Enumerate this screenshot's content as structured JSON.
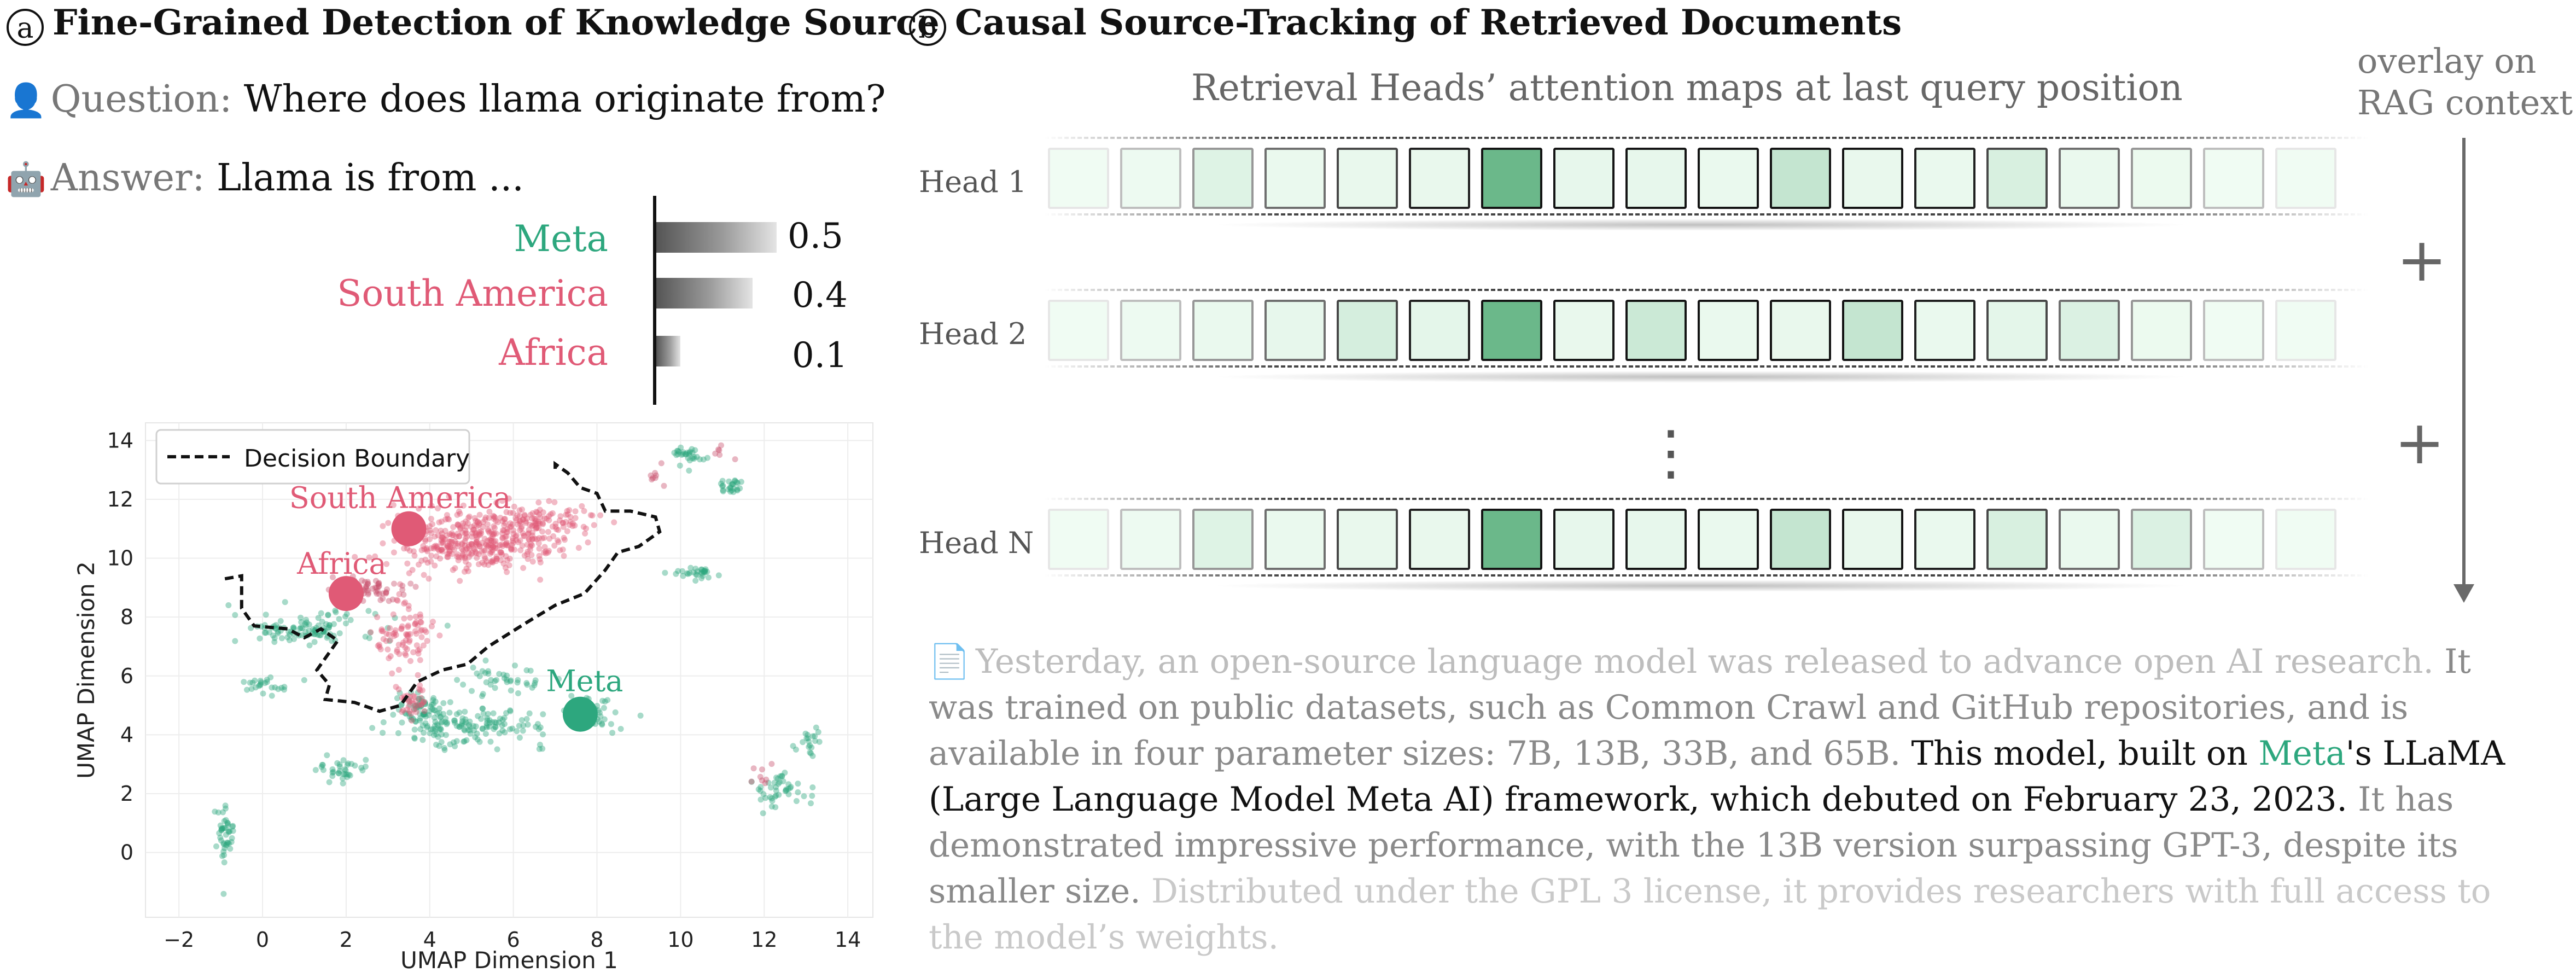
{
  "panel_a": {
    "letter": "a",
    "title": "Fine-Grained Detection of Knowledge Source",
    "question_label": "Question:",
    "question_text": "Where does llama originate from?",
    "answer_label": "Answer:",
    "answer_text": "Llama is from ...",
    "person_icon": "👤",
    "robot_icon": "🤖",
    "candidates": [
      {
        "label": "Meta",
        "prob": "0.5",
        "value": 0.5,
        "color": "#2da77e"
      },
      {
        "label": "South America",
        "prob": "0.4",
        "value": 0.4,
        "color": "#e05a76"
      },
      {
        "label": "Africa",
        "prob": "0.1",
        "value": 0.1,
        "color": "#e05a76"
      }
    ]
  },
  "panel_b": {
    "letter": "b",
    "title": "Causal Source-Tracking of Retrieved Documents",
    "heads_title": "Retrieval Heads’ attention maps at last query position",
    "overlay_line1": "overlay on",
    "overlay_line2": "RAG context",
    "vdots": "⋮",
    "plus_sign": "+",
    "heads": [
      {
        "label": "Head 1",
        "cells": [
          0.0,
          0.02,
          0.12,
          0.04,
          0.05,
          0.05,
          0.9,
          0.06,
          0.06,
          0.04,
          0.3,
          0.05,
          0.04,
          0.16,
          0.04,
          0.03,
          0.0,
          0.0
        ]
      },
      {
        "label": "Head 2",
        "cells": [
          0.0,
          0.02,
          0.04,
          0.06,
          0.18,
          0.08,
          0.9,
          0.05,
          0.25,
          0.04,
          0.05,
          0.3,
          0.04,
          0.08,
          0.14,
          0.03,
          0.0,
          0.0
        ]
      },
      {
        "label": "Head N",
        "cells": [
          0.0,
          0.02,
          0.12,
          0.04,
          0.05,
          0.05,
          0.9,
          0.06,
          0.06,
          0.04,
          0.3,
          0.05,
          0.04,
          0.16,
          0.04,
          0.14,
          0.0,
          0.0
        ]
      }
    ],
    "document_icon": "📄",
    "document_segments": [
      {
        "text": "Yesterday, an open-source language model was released to advance open AI research. ",
        "style": "s0"
      },
      {
        "text": "It was trained on public datasets, such as Common Crawl and GitHub repositories, and is available in four parameter sizes: 7B, 13B, 33B, and 65B. ",
        "style": "s1"
      },
      {
        "text": "This model, built on ",
        "style": "s2"
      },
      {
        "text": "Meta",
        "style": "meta"
      },
      {
        "text": "'s LLaMA (Large Language Model Meta AI) framework, which debuted on February 23, 2023. ",
        "style": "s2"
      },
      {
        "text": "It has demonstrated impressive performance, with the 13B version surpassing GPT-3, despite its smaller size. ",
        "style": "s1"
      },
      {
        "text": "Distributed under the GPL 3 license, it provides researchers with full access to the model’s weights.",
        "style": "s3"
      }
    ]
  },
  "chart_data": {
    "type": "scatter",
    "xlabel": "UMAP Dimension 1",
    "ylabel": "UMAP Dimension 2",
    "xlim": [
      -2.8,
      14.6
    ],
    "ylim": [
      -2.2,
      14.6
    ],
    "xticks": [
      -2,
      0,
      2,
      4,
      6,
      8,
      10,
      12,
      14
    ],
    "yticks": [
      0,
      2,
      4,
      6,
      8,
      10,
      12,
      14
    ],
    "grid": true,
    "legend": {
      "entries": [
        "Decision Boundary"
      ],
      "position": "top-left"
    },
    "annotations": [
      {
        "label": "South America",
        "x": 3.5,
        "y": 11.0,
        "color": "#e05a76"
      },
      {
        "label": "Africa",
        "x": 2.0,
        "y": 8.8,
        "color": "#e05a76"
      },
      {
        "label": "Meta",
        "x": 7.6,
        "y": 4.7,
        "color": "#2da77e"
      }
    ],
    "decision_boundary": [
      [
        -0.9,
        9.3
      ],
      [
        -0.5,
        9.4
      ],
      [
        -0.5,
        8.3
      ],
      [
        -0.2,
        7.7
      ],
      [
        0.6,
        7.6
      ],
      [
        1.0,
        7.3
      ],
      [
        1.4,
        7.6
      ],
      [
        1.8,
        7.2
      ],
      [
        1.6,
        6.8
      ],
      [
        1.3,
        6.2
      ],
      [
        1.6,
        5.7
      ],
      [
        1.5,
        5.2
      ],
      [
        2.2,
        5.1
      ],
      [
        2.8,
        4.8
      ],
      [
        3.3,
        5.0
      ],
      [
        3.7,
        5.8
      ],
      [
        4.3,
        6.2
      ],
      [
        4.9,
        6.4
      ],
      [
        5.4,
        7.0
      ],
      [
        6.3,
        7.8
      ],
      [
        7.0,
        8.4
      ],
      [
        7.7,
        8.8
      ],
      [
        8.2,
        9.6
      ],
      [
        8.5,
        10.2
      ],
      [
        9.0,
        10.4
      ],
      [
        9.5,
        10.9
      ],
      [
        9.4,
        11.4
      ],
      [
        8.8,
        11.6
      ],
      [
        8.2,
        11.6
      ],
      [
        8.0,
        12.2
      ],
      [
        7.6,
        12.4
      ],
      [
        7.3,
        12.9
      ],
      [
        7.0,
        13.2
      ],
      [
        7.0,
        13.0
      ]
    ],
    "series": [
      {
        "name": "Meta",
        "color": "#2da77e",
        "clusters": [
          {
            "cx": 1.0,
            "cy": 7.6,
            "sx": 1.6,
            "sy": 0.5,
            "n": 110
          },
          {
            "cx": 5.0,
            "cy": 4.3,
            "sx": 1.7,
            "sy": 0.6,
            "n": 150
          },
          {
            "cx": 3.8,
            "cy": 4.9,
            "sx": 0.5,
            "sy": 0.5,
            "n": 60
          },
          {
            "cx": 8.0,
            "cy": 4.7,
            "sx": 0.6,
            "sy": 0.5,
            "n": 40
          },
          {
            "cx": -0.9,
            "cy": 0.6,
            "sx": 0.25,
            "sy": 0.9,
            "n": 45
          },
          {
            "cx": 1.9,
            "cy": 2.8,
            "sx": 0.5,
            "sy": 0.4,
            "n": 35
          },
          {
            "cx": 10.2,
            "cy": 13.5,
            "sx": 0.4,
            "sy": 0.3,
            "n": 30
          },
          {
            "cx": 11.2,
            "cy": 12.4,
            "sx": 0.25,
            "sy": 0.3,
            "n": 25
          },
          {
            "cx": 10.3,
            "cy": 9.5,
            "sx": 0.5,
            "sy": 0.2,
            "n": 30
          },
          {
            "cx": 12.4,
            "cy": 2.2,
            "sx": 0.6,
            "sy": 0.6,
            "n": 45
          },
          {
            "cx": 13.1,
            "cy": 3.7,
            "sx": 0.3,
            "sy": 0.5,
            "n": 20
          },
          {
            "cx": 0.1,
            "cy": 5.7,
            "sx": 0.6,
            "sy": 0.3,
            "n": 25
          },
          {
            "cx": 5.8,
            "cy": 5.9,
            "sx": 0.9,
            "sy": 0.4,
            "n": 40
          }
        ]
      },
      {
        "name": "South America",
        "color": "#e05a76",
        "clusters": [
          {
            "cx": 5.1,
            "cy": 10.6,
            "sx": 1.8,
            "sy": 0.9,
            "n": 420
          },
          {
            "cx": 3.4,
            "cy": 7.4,
            "sx": 0.6,
            "sy": 1.1,
            "n": 90
          },
          {
            "cx": 6.8,
            "cy": 11.3,
            "sx": 1.0,
            "sy": 0.5,
            "n": 80
          },
          {
            "cx": 3.6,
            "cy": 5.2,
            "sx": 0.3,
            "sy": 0.6,
            "n": 35
          }
        ]
      },
      {
        "name": "Africa",
        "color": "#c9526d",
        "clusters": [
          {
            "cx": 2.5,
            "cy": 9.0,
            "sx": 0.8,
            "sy": 0.4,
            "n": 60
          },
          {
            "cx": 9.4,
            "cy": 12.8,
            "sx": 0.3,
            "sy": 0.4,
            "n": 8
          },
          {
            "cx": 11.0,
            "cy": 13.6,
            "sx": 0.3,
            "sy": 0.2,
            "n": 6
          },
          {
            "cx": 12.0,
            "cy": 2.6,
            "sx": 0.4,
            "sy": 0.4,
            "n": 8
          }
        ]
      }
    ]
  }
}
